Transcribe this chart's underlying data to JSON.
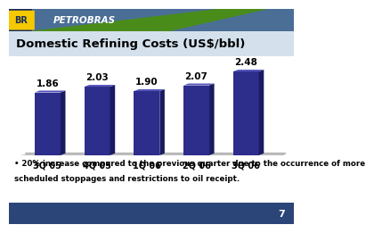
{
  "title": "Domestic Refining Costs (US$/bbl)",
  "categories": [
    "3Q 05",
    "4Q 05",
    "1Q 06",
    "2Q 06",
    "3Q 06"
  ],
  "values": [
    1.86,
    2.03,
    1.9,
    2.07,
    2.48
  ],
  "bar_color_front": "#2D2D8C",
  "bar_color_side": "#1A1A60",
  "bar_color_top": "#5555BB",
  "bar_color_top_light": "#7777CC",
  "platform_color": "#C0C0C0",
  "background_color": "#FFFFFF",
  "chart_bg": "#F0F4F8",
  "header_dark": "#1A2E5A",
  "header_light": "#5B7EA6",
  "title_bg": "#D0DDE8",
  "footer_bg": "#2B4578",
  "bullet_text_line1": "• 20% increase compared to the previous quarter due to the occurrence of more",
  "bullet_text_line2": "scheduled stoppages and restrictions to oil receipt.",
  "page_number": "7",
  "ylim": [
    0,
    2.9
  ],
  "value_fontsize": 7.5,
  "xlabel_fontsize": 7,
  "title_fontsize": 9.5
}
